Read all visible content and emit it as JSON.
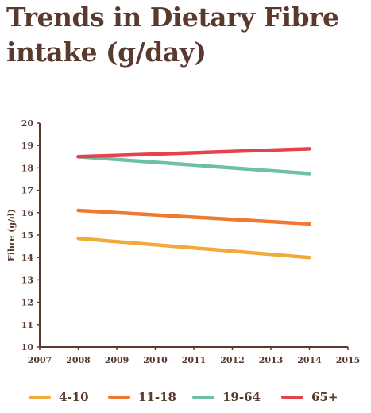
{
  "title_lines": [
    "Trends in Dietary Fibre",
    "intake (g/day)"
  ],
  "chart_data": {
    "type": "line",
    "title": "Trends in Dietary Fibre intake (g/day)",
    "xlabel": "",
    "ylabel": "Fibre (g/d)",
    "xlim": [
      2007,
      2015
    ],
    "ylim": [
      10,
      20
    ],
    "x_ticks": [
      "2007",
      "2008",
      "2009",
      "2010",
      "2011",
      "2012",
      "2013",
      "2014",
      "2015"
    ],
    "y_ticks": [
      "10",
      "11",
      "12",
      "13",
      "14",
      "15",
      "16",
      "17",
      "18",
      "19",
      "20"
    ],
    "grid": false,
    "legend_position": "bottom",
    "series": [
      {
        "name": "4-10",
        "color": "#f2a93b",
        "x": [
          2008,
          2014
        ],
        "y": [
          14.85,
          14.0
        ]
      },
      {
        "name": "11-18",
        "color": "#ef7a2e",
        "x": [
          2008,
          2014
        ],
        "y": [
          16.1,
          15.5
        ]
      },
      {
        "name": "19-64",
        "color": "#6cc0a3",
        "x": [
          2008,
          2014
        ],
        "y": [
          18.5,
          17.75
        ]
      },
      {
        "name": "65+",
        "color": "#e6424b",
        "x": [
          2008,
          2014
        ],
        "y": [
          18.5,
          18.85
        ]
      }
    ]
  }
}
